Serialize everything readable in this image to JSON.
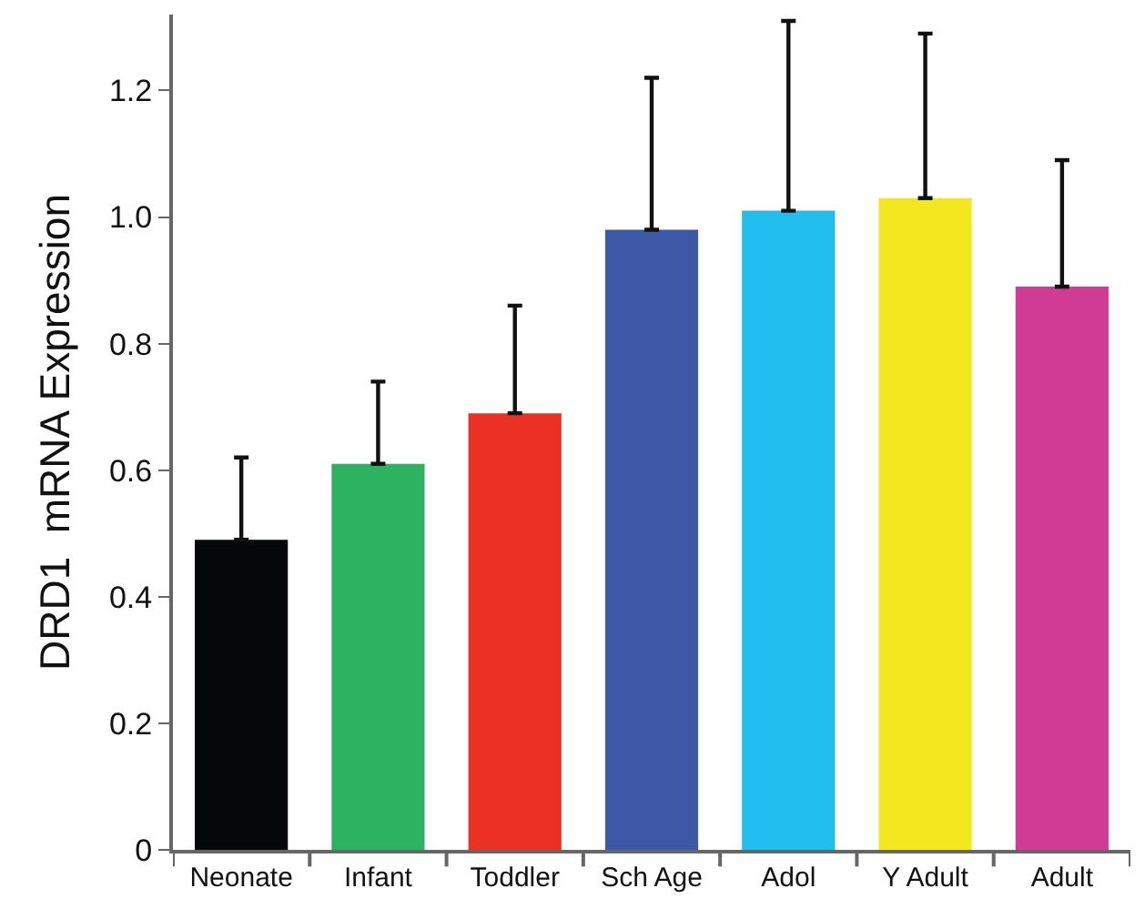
{
  "chart_data": {
    "type": "bar",
    "ylabel": "DRD1  mRNA Expression",
    "categories": [
      "Neonate",
      "Infant",
      "Toddler",
      "Sch Age",
      "Adol",
      "Y Adult",
      "Adult"
    ],
    "values": [
      0.49,
      0.61,
      0.69,
      0.98,
      1.01,
      1.03,
      0.89
    ],
    "errors": [
      [
        0.49,
        0.62
      ],
      [
        0.61,
        0.74
      ],
      [
        0.69,
        0.86
      ],
      [
        0.98,
        1.22
      ],
      [
        1.01,
        1.31
      ],
      [
        1.03,
        1.29
      ],
      [
        0.89,
        1.09
      ]
    ],
    "colors": [
      "#050808",
      "#2db262",
      "#ec3024",
      "#3d58a6",
      "#22bdef",
      "#f3e820",
      "#d03b95"
    ],
    "ylim": [
      0,
      1.32
    ],
    "yticks": [
      0,
      0.2,
      0.4,
      0.6,
      0.8,
      {
        "value": 1,
        "label": "1.0"
      },
      1.2
    ],
    "legend": false
  }
}
